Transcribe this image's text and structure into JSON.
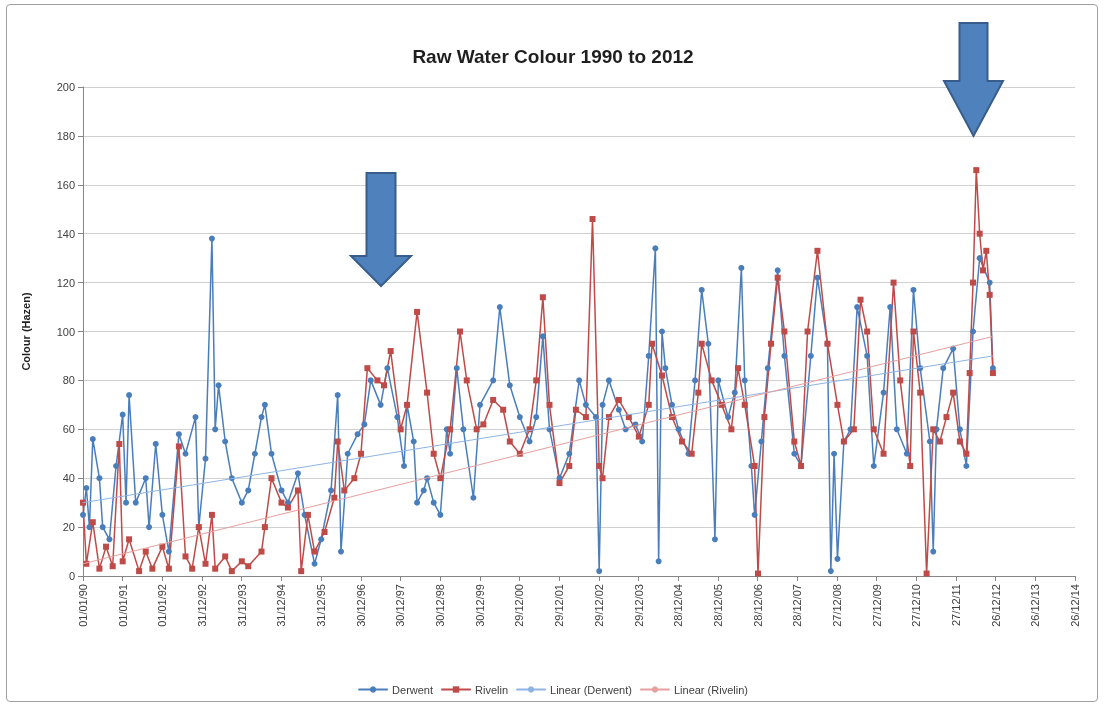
{
  "chart_data": {
    "type": "line",
    "title": "Raw Water Colour 1990 to 2012",
    "ylabel": "Colour (Hazen)",
    "xlim": [
      "1990-01-01",
      "2014-12-26"
    ],
    "xticks": [
      {
        "value": "1990-01-01",
        "label": "01/01/90"
      },
      {
        "value": "1991-01-01",
        "label": "01/01/91"
      },
      {
        "value": "1992-01-01",
        "label": "01/01/92"
      },
      {
        "value": "1992-12-31",
        "label": "31/12/92"
      },
      {
        "value": "1993-12-31",
        "label": "31/12/93"
      },
      {
        "value": "1994-12-31",
        "label": "31/12/94"
      },
      {
        "value": "1995-12-31",
        "label": "31/12/95"
      },
      {
        "value": "1996-12-30",
        "label": "30/12/96"
      },
      {
        "value": "1997-12-30",
        "label": "30/12/97"
      },
      {
        "value": "1998-12-30",
        "label": "30/12/98"
      },
      {
        "value": "1999-12-30",
        "label": "30/12/99"
      },
      {
        "value": "2000-12-29",
        "label": "29/12/00"
      },
      {
        "value": "2001-12-29",
        "label": "29/12/01"
      },
      {
        "value": "2002-12-29",
        "label": "29/12/02"
      },
      {
        "value": "2003-12-29",
        "label": "29/12/03"
      },
      {
        "value": "2004-12-28",
        "label": "28/12/04"
      },
      {
        "value": "2005-12-28",
        "label": "28/12/05"
      },
      {
        "value": "2006-12-28",
        "label": "28/12/06"
      },
      {
        "value": "2007-12-28",
        "label": "28/12/07"
      },
      {
        "value": "2008-12-27",
        "label": "27/12/08"
      },
      {
        "value": "2009-12-27",
        "label": "27/12/09"
      },
      {
        "value": "2010-12-27",
        "label": "27/12/10"
      },
      {
        "value": "2011-12-27",
        "label": "27/12/11"
      },
      {
        "value": "2012-12-26",
        "label": "26/12/12"
      },
      {
        "value": "2013-12-26",
        "label": "26/12/13"
      },
      {
        "value": "2014-12-26",
        "label": "26/12/14"
      }
    ],
    "ylim": [
      0,
      200
    ],
    "yticks": [
      0,
      20,
      40,
      60,
      80,
      100,
      120,
      140,
      160,
      180,
      200
    ],
    "grid": "y",
    "legend": "bottom",
    "series": [
      {
        "name": "Derwent",
        "color": "#4a7ebb",
        "marker": "circle",
        "x": [
          "1990-01",
          "1990-02",
          "1990-03",
          "1990-04",
          "1990-06",
          "1990-07",
          "1990-09",
          "1990-11",
          "1991-01",
          "1991-02",
          "1991-03",
          "1991-05",
          "1991-08",
          "1991-09",
          "1991-11",
          "1992-01",
          "1992-03",
          "1992-06",
          "1992-08",
          "1992-11",
          "1992-12",
          "1993-02",
          "1993-04",
          "1993-05",
          "1993-06",
          "1993-08",
          "1993-10",
          "1994-01",
          "1994-03",
          "1994-05",
          "1994-07",
          "1994-08",
          "1994-10",
          "1995-01",
          "1995-03",
          "1995-06",
          "1995-08",
          "1995-11",
          "1996-01",
          "1996-04",
          "1996-06",
          "1996-07",
          "1996-09",
          "1996-12",
          "1997-02",
          "1997-04",
          "1997-07",
          "1997-09",
          "1997-12",
          "1998-02",
          "1998-03",
          "1998-05",
          "1998-06",
          "1998-08",
          "1998-09",
          "1998-11",
          "1999-01",
          "1999-03",
          "1999-04",
          "1999-06",
          "1999-08",
          "1999-11",
          "2000-01",
          "2000-05",
          "2000-07",
          "2000-10",
          "2001-01",
          "2001-04",
          "2001-06",
          "2001-08",
          "2001-10",
          "2002-01",
          "2002-04",
          "2002-07",
          "2002-09",
          "2002-12",
          "2003-01",
          "2003-02",
          "2003-04",
          "2003-07",
          "2003-09",
          "2003-12",
          "2004-02",
          "2004-04",
          "2004-06",
          "2004-07",
          "2004-08",
          "2004-09",
          "2004-11",
          "2005-01",
          "2005-04",
          "2005-06",
          "2005-08",
          "2005-10",
          "2005-12",
          "2006-01",
          "2006-04",
          "2006-06",
          "2006-08",
          "2006-09",
          "2006-11",
          "2006-12",
          "2007-02",
          "2007-04",
          "2007-07",
          "2007-09",
          "2007-12",
          "2008-02",
          "2008-05",
          "2008-07",
          "2008-10",
          "2008-11",
          "2008-12",
          "2009-01",
          "2009-03",
          "2009-05",
          "2009-07",
          "2009-10",
          "2009-12",
          "2010-03",
          "2010-05",
          "2010-07",
          "2010-10",
          "2010-12",
          "2011-02",
          "2011-05",
          "2011-06",
          "2011-07",
          "2011-09",
          "2011-12",
          "2012-02",
          "2012-04",
          "2012-06",
          "2012-08",
          "2012-11",
          "2012-12"
        ],
        "values": [
          25,
          36,
          20,
          56,
          40,
          20,
          15,
          45,
          66,
          30,
          74,
          30,
          40,
          20,
          54,
          25,
          10,
          58,
          50,
          65,
          20,
          48,
          138,
          60,
          78,
          55,
          40,
          30,
          35,
          50,
          65,
          70,
          50,
          35,
          30,
          42,
          25,
          5,
          15,
          35,
          74,
          10,
          50,
          58,
          62,
          80,
          70,
          85,
          65,
          45,
          70,
          55,
          30,
          35,
          40,
          30,
          25,
          60,
          50,
          85,
          60,
          32,
          70,
          80,
          110,
          78,
          65,
          55,
          65,
          98,
          60,
          40,
          50,
          80,
          70,
          65,
          2,
          70,
          80,
          68,
          60,
          62,
          55,
          90,
          134,
          6,
          100,
          85,
          70,
          60,
          50,
          80,
          117,
          95,
          15,
          80,
          65,
          75,
          126,
          80,
          45,
          25,
          55,
          85,
          125,
          90,
          50,
          45,
          90,
          122,
          95,
          2,
          50,
          7,
          55,
          60,
          110,
          90,
          45,
          75,
          110,
          60,
          50,
          117,
          85,
          55,
          10,
          60,
          85,
          93,
          60,
          45,
          100,
          130,
          120,
          85
        ]
      },
      {
        "name": "Rivelin",
        "color": "#be4b48",
        "marker": "square",
        "x": [
          "1990-01",
          "1990-02",
          "1990-04",
          "1990-06",
          "1990-08",
          "1990-10",
          "1990-12",
          "1991-01",
          "1991-03",
          "1991-06",
          "1991-08",
          "1991-10",
          "1992-01",
          "1992-03",
          "1992-06",
          "1992-08",
          "1992-10",
          "1992-12",
          "1993-02",
          "1993-04",
          "1993-05",
          "1993-08",
          "1993-10",
          "1994-01",
          "1994-03",
          "1994-07",
          "1994-08",
          "1994-10",
          "1995-01",
          "1995-03",
          "1995-06",
          "1995-07",
          "1995-09",
          "1995-11",
          "1996-02",
          "1996-05",
          "1996-06",
          "1996-08",
          "1996-11",
          "1997-01",
          "1997-03",
          "1997-06",
          "1997-08",
          "1997-10",
          "1998-01",
          "1998-03",
          "1998-06",
          "1998-09",
          "1998-11",
          "1999-01",
          "1999-04",
          "1999-07",
          "1999-09",
          "1999-12",
          "2000-02",
          "2000-05",
          "2000-08",
          "2000-10",
          "2001-01",
          "2001-04",
          "2001-06",
          "2001-08",
          "2001-10",
          "2002-01",
          "2002-04",
          "2002-06",
          "2002-09",
          "2002-11",
          "2003-01",
          "2003-02",
          "2003-04",
          "2003-07",
          "2003-10",
          "2004-01",
          "2004-04",
          "2004-05",
          "2004-08",
          "2004-11",
          "2005-02",
          "2005-05",
          "2005-07",
          "2005-08",
          "2005-11",
          "2006-02",
          "2006-05",
          "2006-07",
          "2006-09",
          "2006-12",
          "2007-01",
          "2007-03",
          "2007-05",
          "2007-07",
          "2007-09",
          "2007-12",
          "2008-02",
          "2008-04",
          "2008-07",
          "2008-10",
          "2009-01",
          "2009-03",
          "2009-06",
          "2009-08",
          "2009-10",
          "2009-12",
          "2010-03",
          "2010-06",
          "2010-08",
          "2010-11",
          "2010-12",
          "2011-02",
          "2011-04",
          "2011-06",
          "2011-08",
          "2011-10",
          "2011-12",
          "2012-02",
          "2012-04",
          "2012-05",
          "2012-06",
          "2012-07",
          "2012-08",
          "2012-09",
          "2012-10",
          "2012-11",
          "2012-12"
        ],
        "values": [
          30,
          5,
          22,
          3,
          12,
          4,
          54,
          6,
          15,
          2,
          10,
          3,
          12,
          3,
          53,
          8,
          3,
          20,
          5,
          25,
          3,
          8,
          2,
          6,
          4,
          10,
          20,
          40,
          30,
          28,
          35,
          2,
          25,
          10,
          18,
          32,
          55,
          35,
          40,
          50,
          85,
          80,
          78,
          92,
          60,
          70,
          108,
          75,
          50,
          40,
          60,
          100,
          80,
          60,
          62,
          72,
          68,
          55,
          50,
          60,
          80,
          114,
          70,
          38,
          45,
          68,
          65,
          146,
          45,
          40,
          65,
          72,
          65,
          57,
          70,
          95,
          82,
          65,
          55,
          50,
          75,
          95,
          80,
          70,
          60,
          85,
          70,
          45,
          1,
          65,
          95,
          122,
          100,
          55,
          45,
          100,
          133,
          95,
          70,
          55,
          60,
          113,
          100,
          60,
          50,
          120,
          80,
          45,
          100,
          75,
          1,
          60,
          55,
          65,
          75,
          55,
          50,
          83,
          120,
          166,
          140,
          125,
          133,
          115,
          83
        ]
      },
      {
        "name": "Linear (Derwent)",
        "color": "#8eb4e3",
        "marker": "none",
        "x": [
          "1990-01",
          "2012-12"
        ],
        "values": [
          30,
          90
        ]
      },
      {
        "name": "Linear (Rivelin)",
        "color": "#e6a09e",
        "marker": "none",
        "x": [
          "1990-01",
          "2012-12"
        ],
        "values": [
          5,
          98
        ]
      }
    ]
  }
}
